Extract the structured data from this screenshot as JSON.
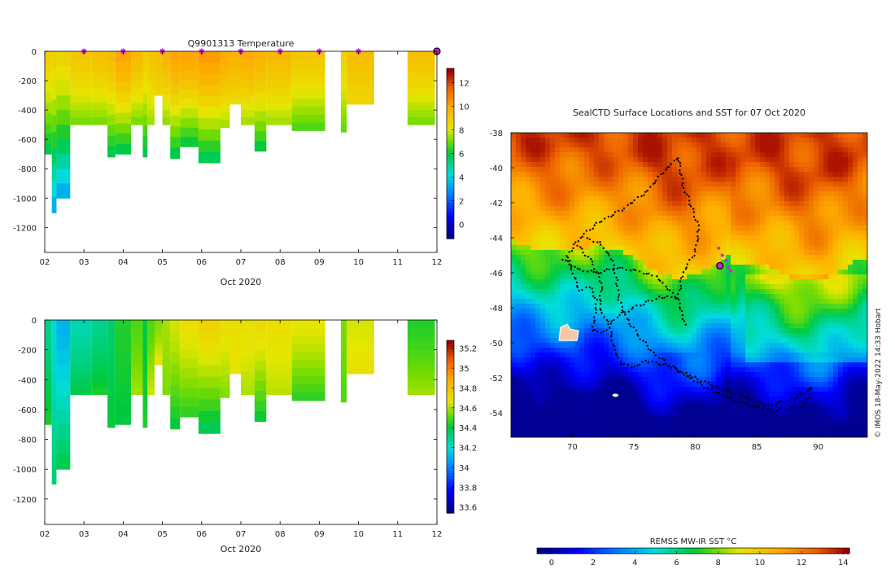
{
  "chart_data": [
    {
      "type": "heatmap",
      "title": "Q9901313  Temperature",
      "xlabel": "Oct 2020",
      "ylabel": "",
      "x_ticks": [
        "02",
        "03",
        "04",
        "05",
        "06",
        "07",
        "08",
        "09",
        "10",
        "11",
        "12"
      ],
      "y_ticks": [
        0,
        -200,
        -400,
        -600,
        -800,
        -1000,
        -1200
      ],
      "xlim": [
        2,
        12
      ],
      "ylim": [
        -1370,
        0
      ],
      "profile_markers_x": [
        3.0,
        4.0,
        5.0,
        6.0,
        7.0,
        8.0,
        9.0,
        10.0
      ],
      "current_marker_x": 12.0,
      "colorbar": {
        "ticks": [
          0,
          2,
          4,
          6,
          8,
          10,
          12
        ],
        "range": [
          -1.2,
          13.2
        ]
      },
      "profiles": [
        {
          "x0": 2.0,
          "x1": 2.18,
          "depth": 700,
          "surface": 9.0,
          "deep": 5.6
        },
        {
          "x0": 2.18,
          "x1": 2.3,
          "depth": 1100,
          "surface": 8.9,
          "deep": 3.0
        },
        {
          "x0": 2.3,
          "x1": 2.65,
          "depth": 1000,
          "surface": 8.8,
          "deep": 3.0
        },
        {
          "x0": 2.65,
          "x1": 3.2,
          "depth": 500,
          "surface": 9.2,
          "deep": 7.0
        },
        {
          "x0": 3.2,
          "x1": 3.6,
          "depth": 500,
          "surface": 9.4,
          "deep": 7.0
        },
        {
          "x0": 3.6,
          "x1": 3.8,
          "depth": 720,
          "surface": 9.6,
          "deep": 5.6
        },
        {
          "x0": 3.8,
          "x1": 4.2,
          "depth": 700,
          "surface": 10.2,
          "deep": 5.6
        },
        {
          "x0": 4.2,
          "x1": 4.5,
          "depth": 500,
          "surface": 9.6,
          "deep": 7.0
        },
        {
          "x0": 4.5,
          "x1": 4.62,
          "depth": 720,
          "surface": 9.0,
          "deep": 5.6
        },
        {
          "x0": 4.62,
          "x1": 4.8,
          "depth": 500,
          "surface": 9.2,
          "deep": 7.4
        },
        {
          "x0": 4.8,
          "x1": 5.0,
          "depth": 300,
          "surface": 9.4,
          "deep": 8.6
        },
        {
          "x0": 5.0,
          "x1": 5.2,
          "depth": 500,
          "surface": 9.8,
          "deep": 7.2
        },
        {
          "x0": 5.2,
          "x1": 5.45,
          "depth": 730,
          "surface": 10.2,
          "deep": 5.6
        },
        {
          "x0": 5.45,
          "x1": 5.92,
          "depth": 650,
          "surface": 10.2,
          "deep": 5.8
        },
        {
          "x0": 5.92,
          "x1": 6.48,
          "depth": 760,
          "surface": 10.4,
          "deep": 5.4
        },
        {
          "x0": 6.48,
          "x1": 6.72,
          "depth": 520,
          "surface": 10.0,
          "deep": 7.4
        },
        {
          "x0": 6.72,
          "x1": 7.0,
          "depth": 360,
          "surface": 9.8,
          "deep": 8.4
        },
        {
          "x0": 7.0,
          "x1": 7.35,
          "depth": 500,
          "surface": 10.0,
          "deep": 7.4
        },
        {
          "x0": 7.35,
          "x1": 7.65,
          "depth": 680,
          "surface": 9.8,
          "deep": 5.8
        },
        {
          "x0": 7.65,
          "x1": 8.3,
          "depth": 500,
          "surface": 9.6,
          "deep": 7.4
        },
        {
          "x0": 8.3,
          "x1": 9.15,
          "depth": 540,
          "surface": 9.2,
          "deep": 6.6
        },
        {
          "x0": 9.55,
          "x1": 9.7,
          "depth": 550,
          "surface": 8.8,
          "deep": 6.8
        },
        {
          "x0": 9.7,
          "x1": 10.4,
          "depth": 360,
          "surface": 9.4,
          "deep": 8.6
        },
        {
          "x0": 11.25,
          "x1": 11.95,
          "depth": 500,
          "surface": 9.4,
          "deep": 7.0
        }
      ]
    },
    {
      "type": "heatmap",
      "title": "",
      "xlabel": "Oct 2020",
      "ylabel": "",
      "x_ticks": [
        "02",
        "03",
        "04",
        "05",
        "06",
        "07",
        "08",
        "09",
        "10",
        "11",
        "12"
      ],
      "y_ticks": [
        0,
        -200,
        -400,
        -600,
        -800,
        -1000,
        -1200
      ],
      "xlim": [
        2,
        12
      ],
      "ylim": [
        -1370,
        0
      ],
      "colorbar": {
        "ticks": [
          33.6,
          33.8,
          34,
          34.2,
          34.4,
          34.6,
          34.8,
          35,
          35.2
        ],
        "range": [
          33.54,
          35.28
        ]
      },
      "profiles": [
        {
          "x0": 2.0,
          "x1": 2.18,
          "depth": 700,
          "surface": 34.3,
          "deep": 34.45
        },
        {
          "x0": 2.18,
          "x1": 2.3,
          "depth": 1100,
          "surface": 34.2,
          "deep": 34.35
        },
        {
          "x0": 2.3,
          "x1": 2.65,
          "depth": 1000,
          "surface": 34.1,
          "deep": 34.4
        },
        {
          "x0": 2.65,
          "x1": 3.2,
          "depth": 500,
          "surface": 34.25,
          "deep": 34.4
        },
        {
          "x0": 3.2,
          "x1": 3.6,
          "depth": 500,
          "surface": 34.3,
          "deep": 34.45
        },
        {
          "x0": 3.6,
          "x1": 3.8,
          "depth": 720,
          "surface": 34.35,
          "deep": 34.42
        },
        {
          "x0": 3.8,
          "x1": 4.2,
          "depth": 700,
          "surface": 34.45,
          "deep": 34.4
        },
        {
          "x0": 4.2,
          "x1": 4.5,
          "depth": 500,
          "surface": 34.5,
          "deep": 34.6
        },
        {
          "x0": 4.5,
          "x1": 4.62,
          "depth": 720,
          "surface": 34.4,
          "deep": 34.45
        },
        {
          "x0": 4.62,
          "x1": 4.8,
          "depth": 500,
          "surface": 34.5,
          "deep": 34.65
        },
        {
          "x0": 4.8,
          "x1": 5.0,
          "depth": 300,
          "surface": 34.55,
          "deep": 34.7
        },
        {
          "x0": 5.0,
          "x1": 5.2,
          "depth": 500,
          "surface": 34.6,
          "deep": 34.55
        },
        {
          "x0": 5.2,
          "x1": 5.45,
          "depth": 730,
          "surface": 34.65,
          "deep": 34.4
        },
        {
          "x0": 5.45,
          "x1": 5.92,
          "depth": 650,
          "surface": 34.7,
          "deep": 34.45
        },
        {
          "x0": 5.92,
          "x1": 6.48,
          "depth": 760,
          "surface": 34.75,
          "deep": 34.35
        },
        {
          "x0": 6.48,
          "x1": 6.72,
          "depth": 520,
          "surface": 34.7,
          "deep": 34.55
        },
        {
          "x0": 6.72,
          "x1": 7.0,
          "depth": 360,
          "surface": 34.7,
          "deep": 34.68
        },
        {
          "x0": 7.0,
          "x1": 7.35,
          "depth": 500,
          "surface": 34.7,
          "deep": 34.6
        },
        {
          "x0": 7.35,
          "x1": 7.65,
          "depth": 680,
          "surface": 34.72,
          "deep": 34.4
        },
        {
          "x0": 7.65,
          "x1": 8.3,
          "depth": 500,
          "surface": 34.7,
          "deep": 34.62
        },
        {
          "x0": 8.3,
          "x1": 9.15,
          "depth": 540,
          "surface": 34.68,
          "deep": 34.45
        },
        {
          "x0": 9.55,
          "x1": 9.7,
          "depth": 550,
          "surface": 34.55,
          "deep": 34.5
        },
        {
          "x0": 9.7,
          "x1": 10.4,
          "depth": 360,
          "surface": 34.65,
          "deep": 34.7
        },
        {
          "x0": 11.25,
          "x1": 11.95,
          "depth": 500,
          "surface": 34.45,
          "deep": 34.6
        }
      ]
    },
    {
      "type": "heatmap",
      "title": "SealCTD Surface Locations and SST for 07 Oct 2020",
      "xlabel": "",
      "ylabel": "",
      "x_ticks": [
        70,
        75,
        80,
        85,
        90
      ],
      "y_ticks": [
        -38,
        -40,
        -42,
        -44,
        -46,
        -48,
        -50,
        -52,
        -54
      ],
      "xlim": [
        65,
        94
      ],
      "ylim": [
        -55.4,
        -38
      ],
      "current_position": [
        82.0,
        -45.6
      ],
      "colorbar": {
        "label": "REMSS MW-IR SST °C",
        "ticks": [
          0,
          2,
          4,
          6,
          8,
          10,
          12,
          14
        ],
        "range": [
          -0.7,
          14.3
        ]
      },
      "track_waypoints": [
        [
          78.6,
          -39.4
        ],
        [
          77.2,
          -40.4
        ],
        [
          76.0,
          -41.4
        ],
        [
          74.0,
          -42.4
        ],
        [
          72.0,
          -43.2
        ],
        [
          70.6,
          -44.0
        ],
        [
          69.6,
          -45.0
        ],
        [
          70.2,
          -46.4
        ],
        [
          70.6,
          -47.0
        ],
        [
          71.4,
          -46.8
        ],
        [
          72.0,
          -47.6
        ],
        [
          71.8,
          -48.5
        ],
        [
          71.6,
          -49.3
        ],
        [
          72.6,
          -49.4
        ],
        [
          73.6,
          -48.5
        ],
        [
          75.0,
          -48.0
        ],
        [
          77.0,
          -47.4
        ],
        [
          78.6,
          -47.4
        ],
        [
          79.0,
          -46.0
        ],
        [
          80.0,
          -44.8
        ],
        [
          80.3,
          -43.5
        ],
        [
          79.8,
          -42.4
        ],
        [
          79.0,
          -41.0
        ],
        [
          78.6,
          -39.4
        ]
      ],
      "track2_waypoints": [
        [
          70.4,
          -44.4
        ],
        [
          71.6,
          -45.4
        ],
        [
          72.4,
          -46.6
        ],
        [
          72.2,
          -48.0
        ],
        [
          73.0,
          -49.0
        ],
        [
          73.4,
          -50.4
        ],
        [
          74.0,
          -51.2
        ],
        [
          75.0,
          -51.4
        ],
        [
          76.0,
          -51.0
        ],
        [
          78.0,
          -51.4
        ],
        [
          80.0,
          -52.0
        ],
        [
          82.0,
          -52.6
        ],
        [
          84.0,
          -53.1
        ],
        [
          86.0,
          -53.6
        ],
        [
          88.0,
          -53.2
        ],
        [
          89.5,
          -52.6
        ],
        [
          88.8,
          -53.6
        ],
        [
          86.5,
          -53.9
        ],
        [
          84.0,
          -53.5
        ],
        [
          81.0,
          -52.6
        ],
        [
          78.6,
          -51.6
        ],
        [
          76.6,
          -50.6
        ],
        [
          75.4,
          -49.6
        ],
        [
          74.4,
          -48.6
        ],
        [
          73.8,
          -47.6
        ],
        [
          73.6,
          -46.4
        ],
        [
          73.2,
          -45.2
        ],
        [
          72.2,
          -44.3
        ],
        [
          71.0,
          -44.0
        ]
      ],
      "track3_waypoints": [
        [
          69.2,
          -45.2
        ],
        [
          70.4,
          -45.8
        ],
        [
          72.0,
          -46.0
        ],
        [
          73.6,
          -45.7
        ],
        [
          75.2,
          -45.9
        ],
        [
          76.8,
          -46.2
        ],
        [
          77.8,
          -46.9
        ],
        [
          78.6,
          -47.6
        ],
        [
          79.0,
          -48.4
        ],
        [
          79.2,
          -49.2
        ]
      ],
      "recent_positions": [
        [
          81.9,
          -44.6
        ],
        [
          82.2,
          -45.0
        ],
        [
          82.5,
          -45.3
        ],
        [
          82.7,
          -45.7
        ],
        [
          82.9,
          -45.9
        ]
      ],
      "islands": [
        [
          69.7,
          -49.5
        ],
        [
          73.5,
          -53.0
        ]
      ]
    }
  ],
  "credit": "© IMOS 18-May-2022 14:33 Hobart"
}
